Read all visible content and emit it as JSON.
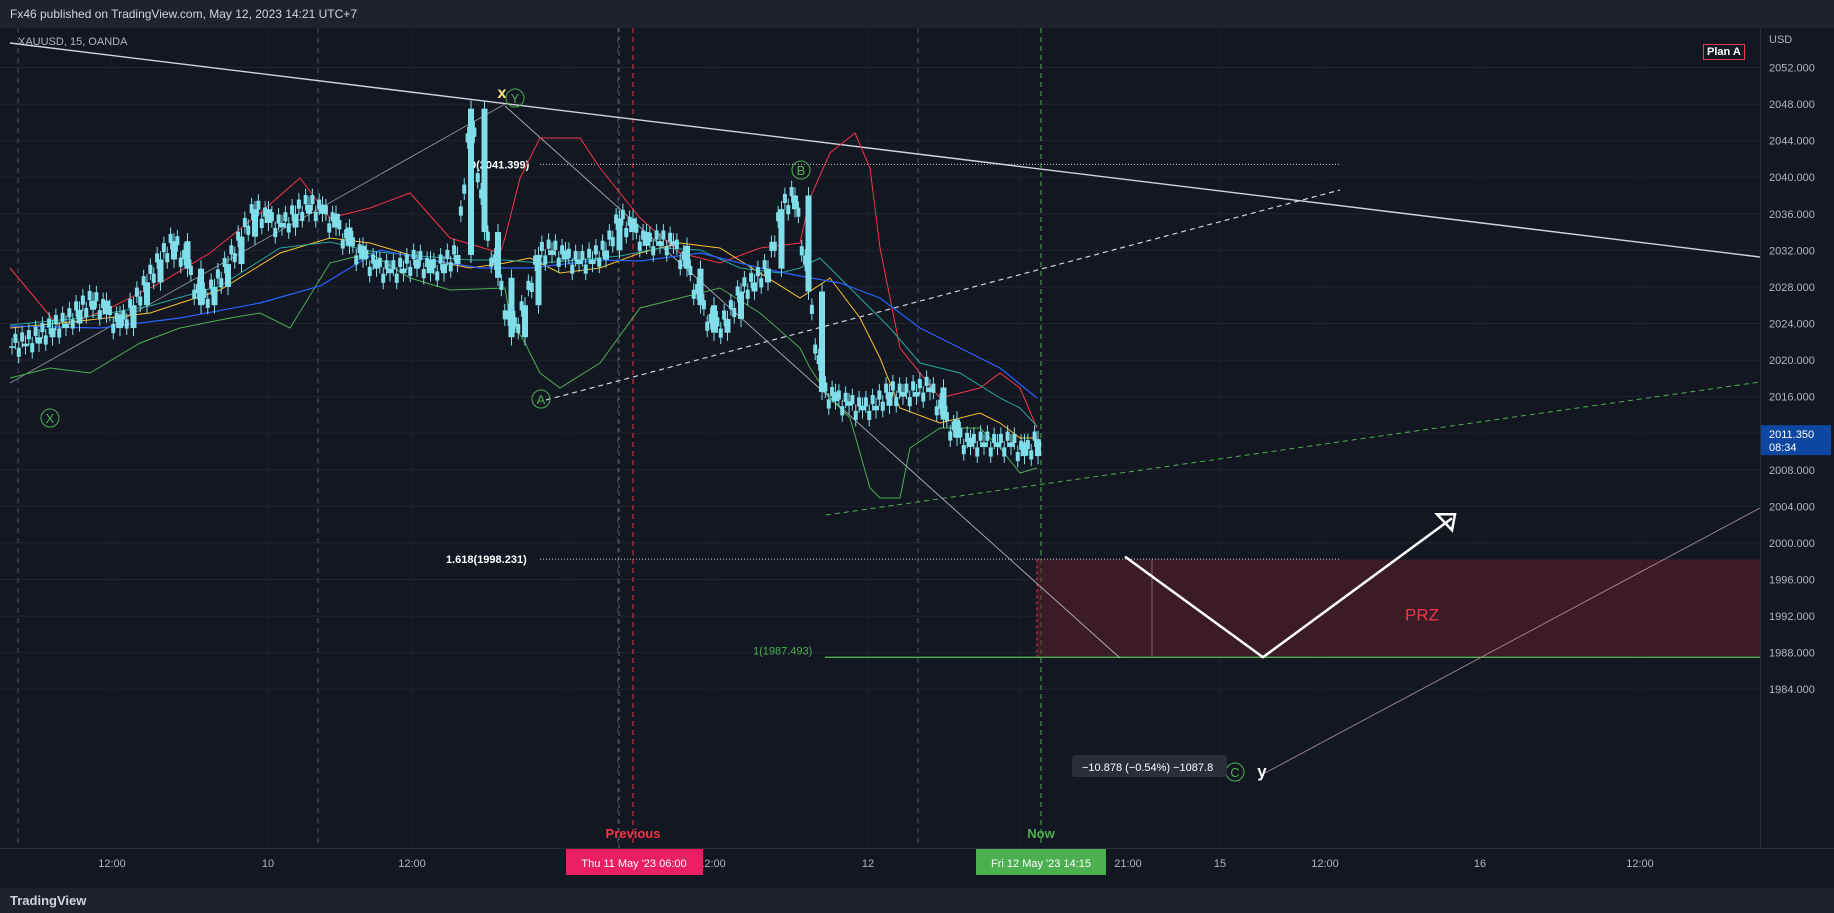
{
  "header": {
    "published": "Fx46 published on TradingView.com, May 12, 2023 14:21 UTC+7"
  },
  "footer": {
    "logo": "TradingView"
  },
  "symbol": "XAUUSD, 15, OANDA",
  "plan_label": "Plan A",
  "currency": "USD",
  "chart_data": {
    "type": "candlestick",
    "instrument": "XAUUSD",
    "interval": "15",
    "source": "OANDA",
    "ylim": [
      1981.5,
      2056.5
    ],
    "y_ticks": [
      "2052.000",
      "2048.000",
      "2044.000",
      "2040.000",
      "2036.000",
      "2032.000",
      "2028.000",
      "2024.000",
      "2020.000",
      "2016.000",
      "2012.000",
      "2008.000",
      "2004.000",
      "2000.000",
      "1996.000",
      "1992.000",
      "1988.000",
      "1984.000"
    ],
    "x_ticks": [
      "12:00",
      "10",
      "12:00",
      "12:00",
      "12",
      "21:00",
      "15",
      "12:00",
      "16",
      "12:00"
    ],
    "current_price": "2011.350",
    "countdown": "08:34",
    "price_path": [
      2021.5,
      2021.8,
      2022.5,
      2023.5,
      2024.0,
      2025.5,
      2026.5,
      2025.0,
      2023.5,
      2026.0,
      2028.5,
      2031.0,
      2033.0,
      2030.0,
      2026.0,
      2028.0,
      2030.5,
      2033.5,
      2036.5,
      2035.0,
      2034.5,
      2036.0,
      2037.0,
      2036.0,
      2034.5,
      2032.5,
      2031.0,
      2030.0,
      2029.5,
      2030.0,
      2031.0,
      2029.5,
      2030.5,
      2031.5,
      2047.5,
      2034.0,
      2029.0,
      2022.5,
      2026.0,
      2031.5,
      2032.0,
      2031.0,
      2030.5,
      2031.0,
      2032.0,
      2035.5,
      2034.0,
      2032.5,
      2033.0,
      2032.5,
      2030.0,
      2026.0,
      2023.0,
      2024.5,
      2027.5,
      2028.5,
      2030.0,
      2036.5,
      2038.0,
      2027.5,
      2016.5,
      2015.5,
      2015.0,
      2014.5,
      2015.0,
      2016.5,
      2016.0,
      2016.5,
      2017.0,
      2013.5,
      2011.5,
      2010.5,
      2011.0,
      2010.5,
      2011.0,
      2009.5,
      2011.35
    ],
    "price_path_x_range": [
      "first candle",
      "Fri 12 May '23 14:15"
    ],
    "annotations": {
      "wave_labels": [
        "X",
        "X",
        "Y",
        "A",
        "B",
        "C"
      ],
      "final_label": "y",
      "fib_levels": [
        {
          "label": "0(2041.399)",
          "value": 2041.399
        },
        {
          "label": "1.618(1998.231)",
          "value": 1998.231
        },
        {
          "label": "1(1987.493)",
          "value": 1987.493
        }
      ],
      "zone_label": "PRZ",
      "zone_range": [
        1987.5,
        1998.2
      ],
      "measure_label": "−10.878 (−0.54%) −1087.8",
      "projection_low": 1987.5,
      "projection_target": 2002.7
    },
    "time_markers": [
      {
        "label": "Previous",
        "date": "Thu 11 May '23   06:00",
        "color": "#f23645"
      },
      {
        "label": "Now",
        "date": "Fri 12 May '23   14:15",
        "color": "#4caf50"
      }
    ]
  },
  "colors": {
    "background": "#131722",
    "candles": "#80deea",
    "upper_band": "#f23645",
    "lower_band": "#4caf50",
    "ma_yellow": "#fbc02d",
    "ma_teal": "#26a69a",
    "ma_blue": "#2962ff",
    "prz_fill": "#5d1f2a",
    "price_badge": "#0d47a1"
  }
}
